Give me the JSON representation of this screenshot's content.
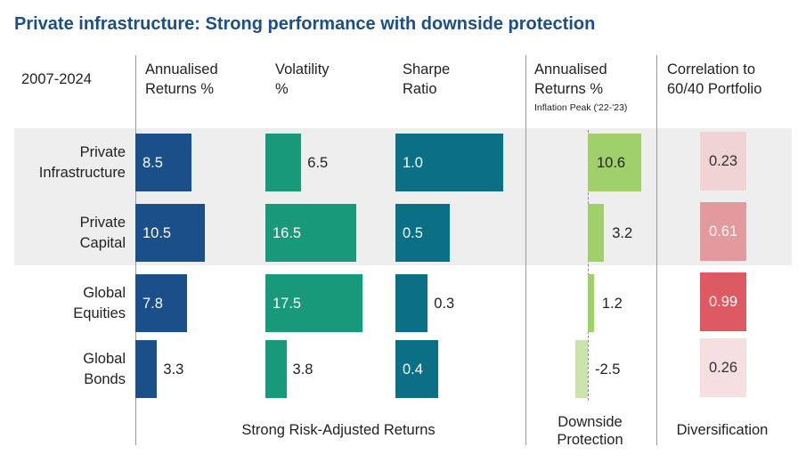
{
  "title": "Private infrastructure: Strong performance with downside protection",
  "period": "2007-2024",
  "headers": {
    "returns": "Annualised\nReturns %",
    "volatility": "Volatility\n%",
    "sharpe": "Sharpe\nRatio",
    "inflation_returns": "Annualised\nReturns %",
    "inflation_sub": "Inflation Peak ('22-'23)",
    "correlation": "Correlation to\n60/40 Portfolio"
  },
  "footers": {
    "risk_adjusted": "Strong Risk-Adjusted Returns",
    "downside": "Downside\nProtection",
    "diversification": "Diversification"
  },
  "colors": {
    "returns": "#1a4f8a",
    "volatility": "#18997a",
    "sharpe": "#0b6f86",
    "inflation": "#9fd06a",
    "inflation_negative": "#c9e5ab",
    "band": "#eeeeee"
  },
  "chart_data": {
    "type": "bar",
    "categories": [
      "Private\nInfrastructure",
      "Private\nCapital",
      "Global\nEquities",
      "Global\nBonds"
    ],
    "series": [
      {
        "name": "Annualised Returns %",
        "values": [
          8.5,
          10.5,
          7.8,
          3.3
        ],
        "labels": [
          "8.5",
          "10.5",
          "7.8",
          "3.3"
        ]
      },
      {
        "name": "Volatility %",
        "values": [
          6.5,
          16.5,
          17.5,
          3.8
        ],
        "labels": [
          "6.5",
          "16.5",
          "17.5",
          "3.8"
        ]
      },
      {
        "name": "Sharpe Ratio",
        "values": [
          1.0,
          0.5,
          0.3,
          0.4
        ],
        "labels": [
          "1.0",
          "0.5",
          "0.3",
          "0.4"
        ]
      },
      {
        "name": "Annualised Returns % Inflation Peak ('22-'23)",
        "values": [
          10.6,
          3.2,
          1.2,
          -2.5
        ],
        "labels": [
          "10.6",
          "3.2",
          "1.2",
          "-2.5"
        ]
      }
    ],
    "correlation": {
      "name": "Correlation to 60/40 Portfolio",
      "values": [
        0.23,
        0.61,
        0.99,
        0.26
      ],
      "labels": [
        "0.23",
        "0.61",
        "0.99",
        "0.26"
      ],
      "colors": [
        "#efd3d5",
        "#e39a9f",
        "#de5a62",
        "#f6dfe1"
      ]
    }
  }
}
